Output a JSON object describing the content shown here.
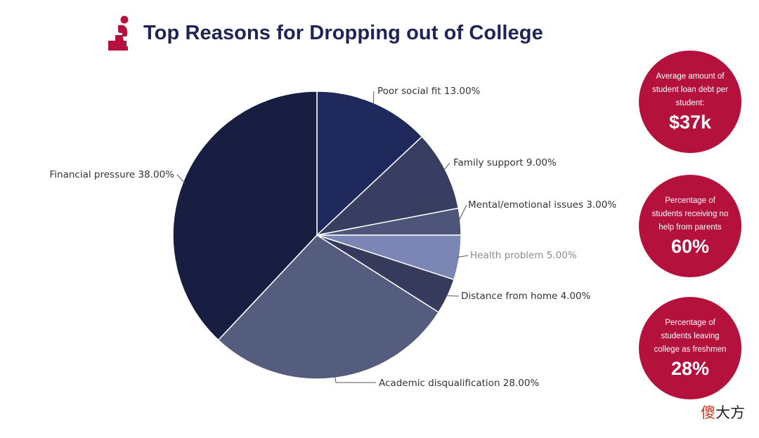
{
  "title": "Top Reasons for Dropping out of College",
  "icon": "thinker-icon",
  "colors": {
    "accent": "#b4123d",
    "title": "#1e2556"
  },
  "chart_data": {
    "type": "pie",
    "title": "Top Reasons for Dropping out of College",
    "start_at": "12 o'clock",
    "direction": "clockwise",
    "slices": [
      {
        "label": "Poor social fit 13.00%",
        "name": "Poor social fit",
        "value": 13.0,
        "color": "#1f295c",
        "label_color": "#333333"
      },
      {
        "label": "Family support 9.00%",
        "name": "Family support",
        "value": 9.0,
        "color": "#383e62",
        "label_color": "#333333"
      },
      {
        "label": "Mental/emotional issues 3.00%",
        "name": "Mental/emotional issues",
        "value": 3.0,
        "color": "#4e557a",
        "label_color": "#333333"
      },
      {
        "label": "Health problem 5.00%",
        "name": "Health problem",
        "value": 5.0,
        "color": "#7c86b4",
        "label_color": "#8a8a8a"
      },
      {
        "label": "Distance from home 4.00%",
        "name": "Distance from home",
        "value": 4.0,
        "color": "#363b5c",
        "label_color": "#333333"
      },
      {
        "label": "Academic disqualification 28.00%",
        "name": "Academic disqualification",
        "value": 28.0,
        "color": "#555d7f",
        "label_color": "#333333"
      },
      {
        "label": "Financial pressure 38.00%",
        "name": "Financial pressure",
        "value": 38.0,
        "color": "#171e42",
        "label_color": "#333333"
      }
    ]
  },
  "stats": [
    {
      "text": "Average amount of student loan debt per student:",
      "value": "$37k"
    },
    {
      "text": "Percentage of students receiving no help from parents",
      "value": "60%"
    },
    {
      "text": "Percentage of students leaving college as freshmen",
      "value": "28%"
    }
  ],
  "watermark": {
    "first": "傻",
    "rest": "大方"
  }
}
